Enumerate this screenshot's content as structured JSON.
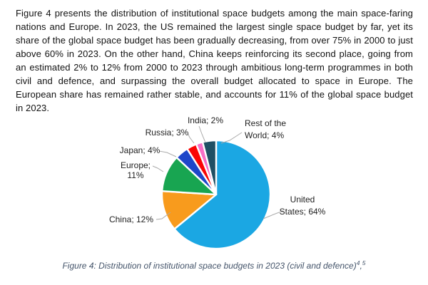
{
  "page": {
    "paragraph": "Figure 4 presents the distribution of institutional space budgets among the main space-faring nations and Europe. In 2023, the US remained the largest single space budget by far, yet its share of the global space budget has been gradually decreasing, from over 75% in 2000 to just above 60% in 2023. On the other hand, China keeps reinforcing its second place, going from an estimated 2% to 12% from 2000 to 2023 through ambitious long-term programmes in both civil and defence, and surpassing the overall budget allocated to space in Europe. The European share has remained rather stable, and accounts for 11% of the global space budget in 2023.",
    "caption": {
      "text": "Figure 4: Distribution of institutional space budgets in 2023 (civil and defence)",
      "footnote_ref_1": "4",
      "separator": ",",
      "footnote_ref_2": "5",
      "color": "#44546A"
    }
  },
  "chart_data": {
    "type": "pie",
    "title": "Distribution of institutional space budgets in 2023 (civil and defence)",
    "categories": [
      "United States",
      "China",
      "Europe",
      "Japan",
      "Russia",
      "India",
      "Rest of the World"
    ],
    "values": [
      64,
      12,
      11,
      4,
      3,
      2,
      4
    ],
    "unit": "%",
    "label_format": "{category}; {value}%",
    "start_angle_deg": 0,
    "direction": "clockwise",
    "legend_position": "none",
    "data_labels": "outside with leader lines",
    "colors": {
      "United States": "#1BA7E3",
      "China": "#F89B1D",
      "Europe": "#18A551",
      "Japan": "#1E46C9",
      "Russia": "#FA0505",
      "India": "#F76EC6",
      "Rest of the World": "#1F4F63"
    },
    "slice_gap_color": "#FFFFFF",
    "leader_line_color": "#ABABAB",
    "label_color": "#1F1F1F"
  }
}
